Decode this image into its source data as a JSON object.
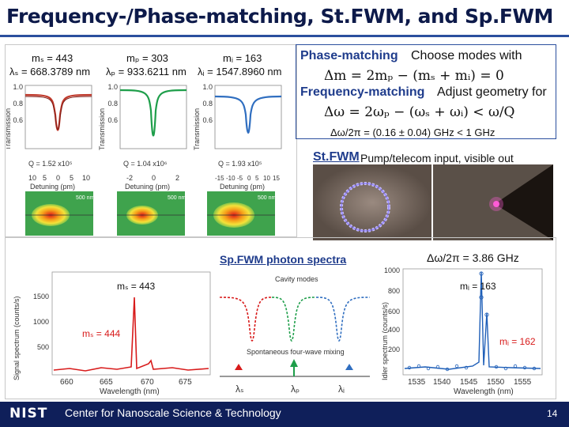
{
  "slide": {
    "title": "Frequency-/Phase-matching, St.FWM, and Sp.FWM",
    "page_number": "14"
  },
  "modes": {
    "signal": {
      "m": "mₛ = 443",
      "lambda": "λₛ = 668.3789 nm",
      "q": "Q = 1.52 x10⁵",
      "color": "#c0392b"
    },
    "pump": {
      "m": "mₚ = 303",
      "lambda": "λₚ = 933.6211 nm",
      "q": "Q = 1.04 x10⁶",
      "color": "#1e9e4a"
    },
    "idler": {
      "m": "mᵢ = 163",
      "lambda": "λᵢ = 1547.8960 nm",
      "q": "Q = 1.93 x10⁵",
      "color": "#2f6ec0"
    }
  },
  "transmission": {
    "ylabel": "Transmission",
    "xlabel": "Detuning (pm)",
    "yticks": [
      "1.0",
      "0.8",
      "0.6"
    ],
    "xticks_signal": [
      "10",
      "5",
      "0",
      "5",
      "10"
    ],
    "xticks_pump": [
      "-2",
      "0",
      "2"
    ],
    "xticks_idler": [
      "-15",
      "-10",
      "-5",
      "0",
      "5",
      "10",
      "15"
    ],
    "scale": "500 nm"
  },
  "matching": {
    "phase_label": "Phase-matching",
    "phase_desc": "Choose modes with",
    "phase_eq": "Δm = 2mₚ − (mₛ + mᵢ) = 0",
    "freq_label": "Frequency-matching",
    "freq_desc": "Adjust geometry for",
    "freq_eq": "Δω = 2ωₚ − (ωₛ + ωᵢ) < ω/Q",
    "delta": "Δω/2π = (0.16 ± 0.04) GHz < 1 GHz"
  },
  "stfwm": {
    "label": "St.FWM",
    "desc": "Pump/telecom input, visible out"
  },
  "spfwm": {
    "title": "Sp.FWM photon spectra",
    "delta": "Δω/2π = 3.86 GHz",
    "signal_ylabel": "Signal spectrum (counts/s)",
    "idler_ylabel": "Idler spectrum (counts/s)",
    "xlabel": "Wavelength (nm)",
    "ms443": "mₛ = 443",
    "ms444": "mₛ = 444",
    "mi163": "mᵢ = 163",
    "mi162": "mᵢ = 162",
    "cavity_modes": "Cavity modes",
    "sfwm": "Spontaneous four-wave mixing",
    "lam_s": "λₛ",
    "lam_p": "λₚ",
    "lam_i": "λᵢ",
    "signal_yticks": [
      "1500",
      "1000",
      "500"
    ],
    "signal_xticks": [
      "660",
      "665",
      "670",
      "675"
    ],
    "idler_yticks": [
      "1000",
      "800",
      "600",
      "400",
      "200"
    ],
    "idler_xticks": [
      "1535",
      "1540",
      "1545",
      "1550",
      "1555"
    ]
  },
  "footer": {
    "logo": "NIST",
    "text": "Center for Nanoscale Science & Technology"
  }
}
